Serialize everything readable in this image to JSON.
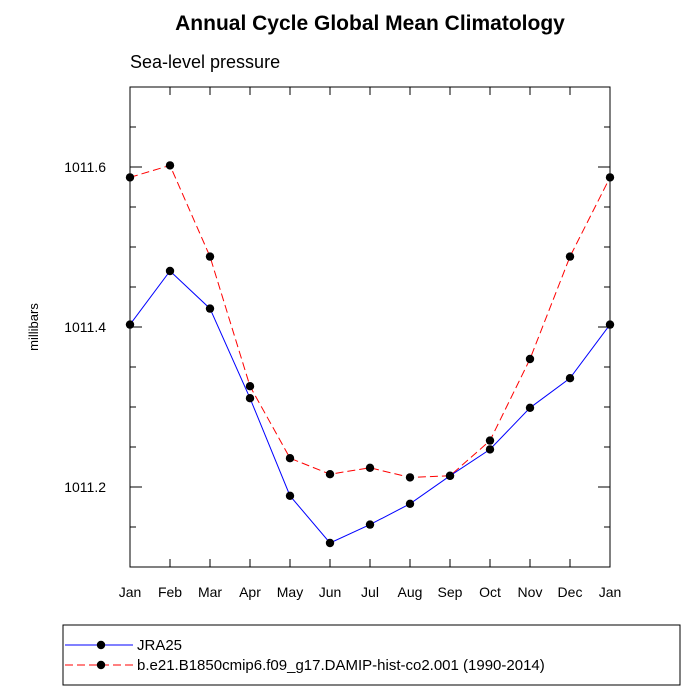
{
  "chart_data": {
    "type": "line",
    "title": "Annual Cycle Global Mean Climatology",
    "subtitle": "Sea-level pressure",
    "xlabel": "",
    "ylabel": "millibars",
    "categories": [
      "Jan",
      "Feb",
      "Mar",
      "Apr",
      "May",
      "Jun",
      "Jul",
      "Aug",
      "Sep",
      "Oct",
      "Nov",
      "Dec",
      "Jan"
    ],
    "ylim": [
      1011.1,
      1011.7
    ],
    "yticks": [
      1011.2,
      1011.4,
      1011.6
    ],
    "ytick_labels": [
      "1011.2",
      "1011.4",
      "1011.6"
    ],
    "grid": false,
    "legend_position": "bottom",
    "series": [
      {
        "name": "JRA25",
        "color": "#0000ff",
        "dash": "solid",
        "values": [
          1011.403,
          1011.47,
          1011.423,
          1011.311,
          1011.189,
          1011.13,
          1011.153,
          1011.179,
          1011.214,
          1011.247,
          1011.299,
          1011.336,
          1011.403
        ]
      },
      {
        "name": "b.e21.B1850cmip6.f09_g17.DAMIP-hist-co2.001 (1990-2014)",
        "color": "#ff0000",
        "dash": "dashed",
        "values": [
          1011.587,
          1011.602,
          1011.488,
          1011.326,
          1011.236,
          1011.216,
          1011.224,
          1011.212,
          1011.214,
          1011.258,
          1011.36,
          1011.488,
          1011.587
        ]
      }
    ]
  }
}
